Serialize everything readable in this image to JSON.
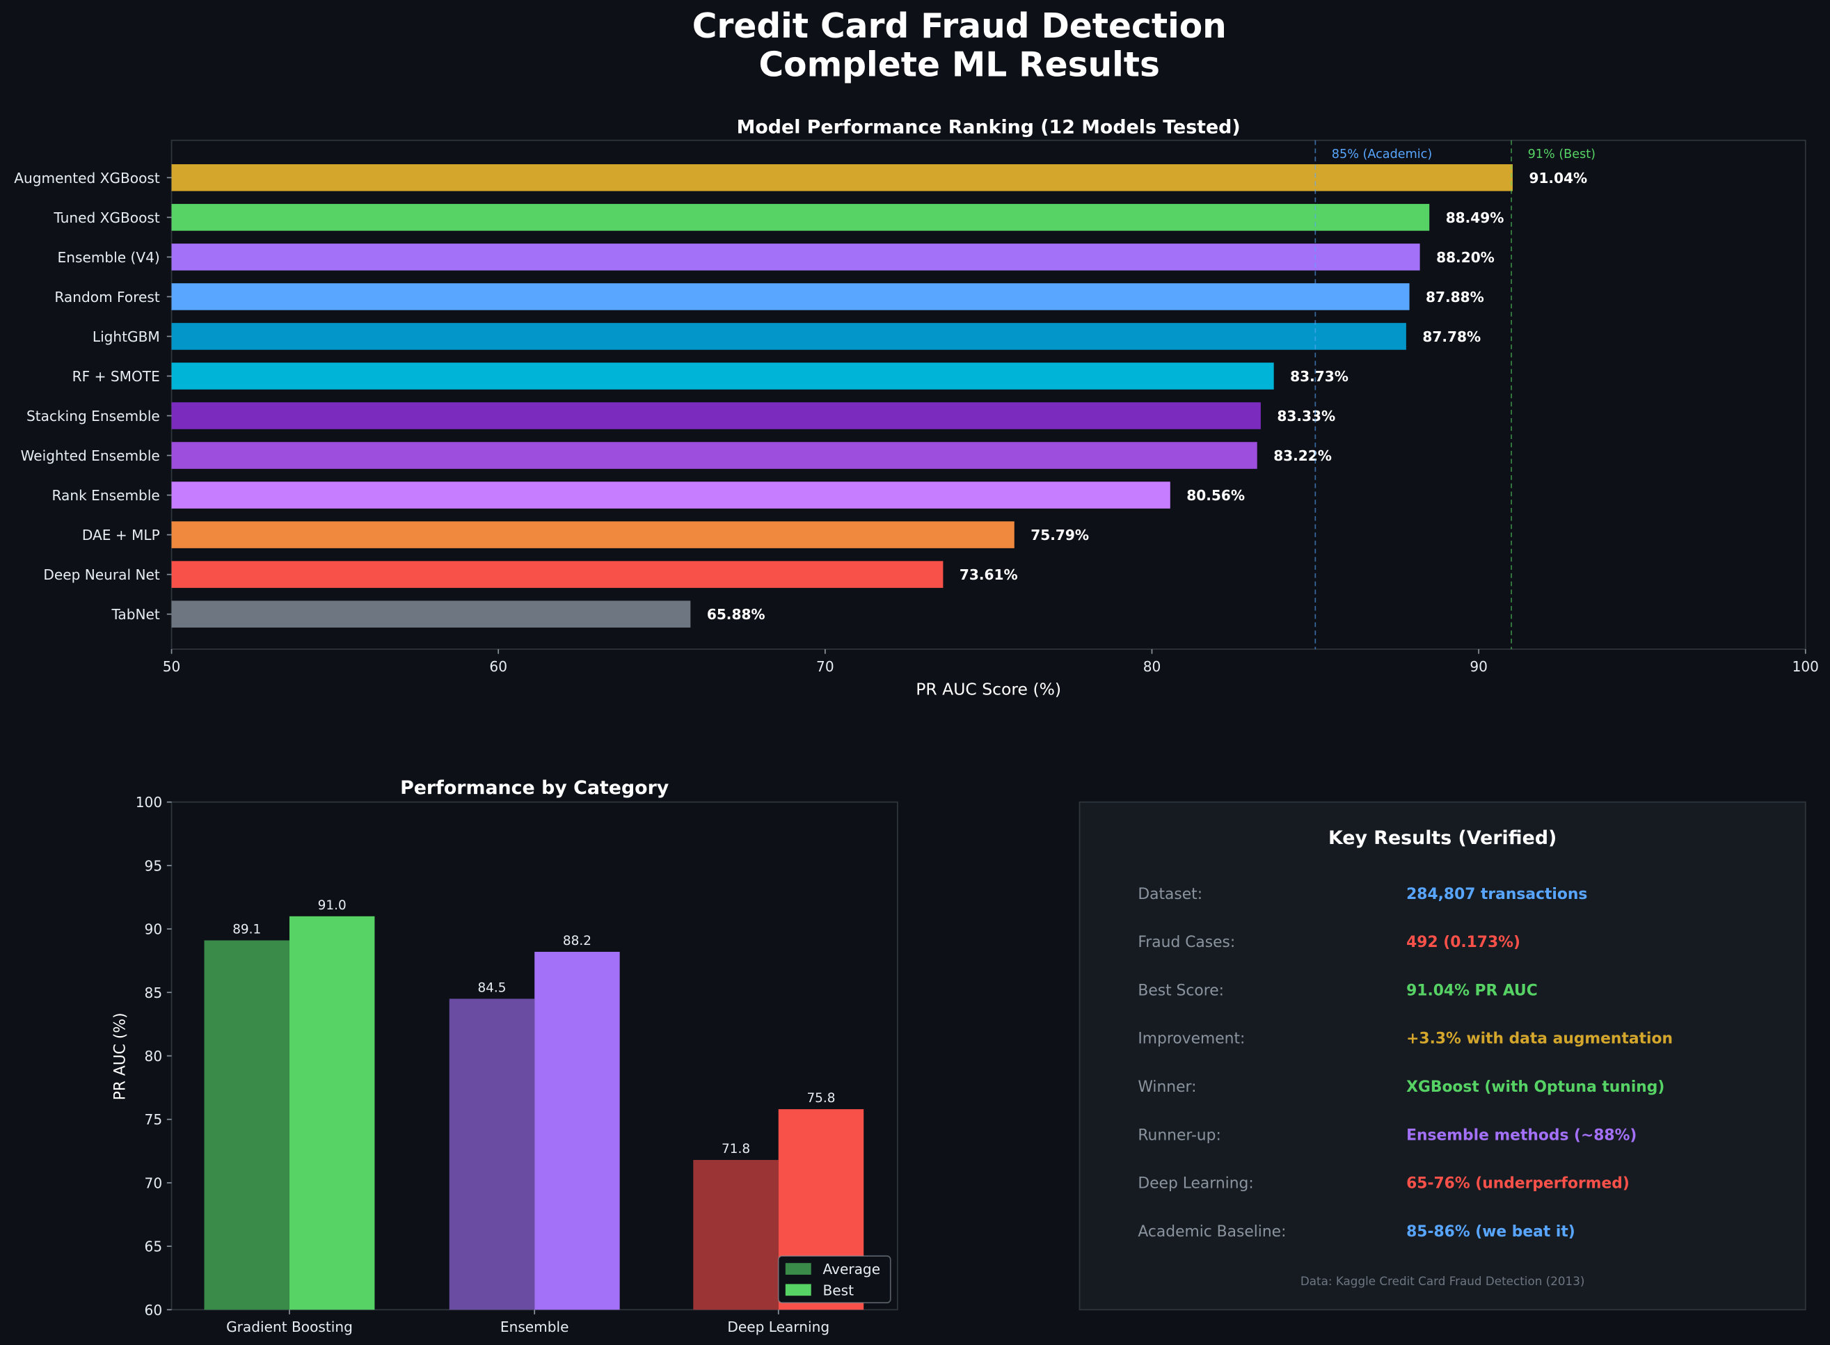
{
  "title_line1": "Credit Card Fraud Detection",
  "title_line2": "Complete ML Results",
  "colors": {
    "background": "#0d1117",
    "panel": "#161b22",
    "border": "#30363d"
  },
  "chart_data": [
    {
      "type": "bar",
      "orientation": "horizontal",
      "title": "Model Performance Ranking (12 Models Tested)",
      "xlabel": "PR AUC Score (%)",
      "xlim": [
        50,
        100
      ],
      "xticks": [
        50,
        60,
        70,
        80,
        90,
        100
      ],
      "categories": [
        "Augmented XGBoost",
        "Tuned XGBoost",
        "Ensemble (V4)",
        "Random Forest",
        "LightGBM",
        "RF + SMOTE",
        "Stacking Ensemble",
        "Weighted Ensemble",
        "Rank Ensemble",
        "DAE + MLP",
        "Deep Neural Net",
        "TabNet"
      ],
      "values": [
        91.04,
        88.49,
        88.2,
        87.88,
        87.78,
        83.73,
        83.33,
        83.22,
        80.56,
        75.79,
        73.61,
        65.88
      ],
      "data_labels": [
        "91.04%",
        "88.49%",
        "88.20%",
        "87.88%",
        "87.78%",
        "83.73%",
        "83.33%",
        "83.22%",
        "80.56%",
        "75.79%",
        "73.61%",
        "65.88%"
      ],
      "bar_colors": [
        "#d4a72c",
        "#56d364",
        "#a371f7",
        "#58a6ff",
        "#0396c8",
        "#00b4d8",
        "#7b2cbf",
        "#9d4edd",
        "#c77dff",
        "#f0883e",
        "#f85149",
        "#6e7681"
      ],
      "reference_lines": [
        {
          "value": 85,
          "label": "85% (Academic)",
          "color": "#58a6ff"
        },
        {
          "value": 91,
          "label": "91% (Best)",
          "color": "#56d364"
        }
      ],
      "grid": false
    },
    {
      "type": "bar",
      "title": "Performance by Category",
      "ylabel": "PR AUC (%)",
      "ylim": [
        60,
        100
      ],
      "yticks": [
        60,
        65,
        70,
        75,
        80,
        85,
        90,
        95,
        100
      ],
      "categories": [
        "Gradient Boosting",
        "Ensemble",
        "Deep Learning"
      ],
      "series": [
        {
          "name": "Average",
          "values": [
            89.1,
            84.5,
            71.8
          ],
          "colors": [
            "#3a8a4a",
            "#6a4ca3",
            "#9b3535"
          ]
        },
        {
          "name": "Best",
          "values": [
            91.0,
            88.2,
            75.8
          ],
          "colors": [
            "#56d364",
            "#a371f7",
            "#f85149"
          ]
        }
      ],
      "legend_position": "lower-right",
      "grid": false
    }
  ],
  "key_results": {
    "title": "Key Results (Verified)",
    "rows": [
      {
        "label": "Dataset:",
        "value": "284,807 transactions",
        "color": "#58a6ff"
      },
      {
        "label": "Fraud Cases:",
        "value": "492 (0.173%)",
        "color": "#f85149"
      },
      {
        "label": "Best Score:",
        "value": "91.04% PR AUC",
        "color": "#56d364"
      },
      {
        "label": "Improvement:",
        "value": "+3.3% with data augmentation",
        "color": "#d4a72c"
      },
      {
        "label": "Winner:",
        "value": "XGBoost (with Optuna tuning)",
        "color": "#56d364"
      },
      {
        "label": "Runner-up:",
        "value": "Ensemble methods (~88%)",
        "color": "#a371f7"
      },
      {
        "label": "Deep Learning:",
        "value": "65-76% (underperformed)",
        "color": "#f85149"
      },
      {
        "label": "Academic Baseline:",
        "value": "85-86% (we beat it)",
        "color": "#58a6ff"
      }
    ],
    "footer": "Data: Kaggle Credit Card Fraud Detection (2013)"
  }
}
